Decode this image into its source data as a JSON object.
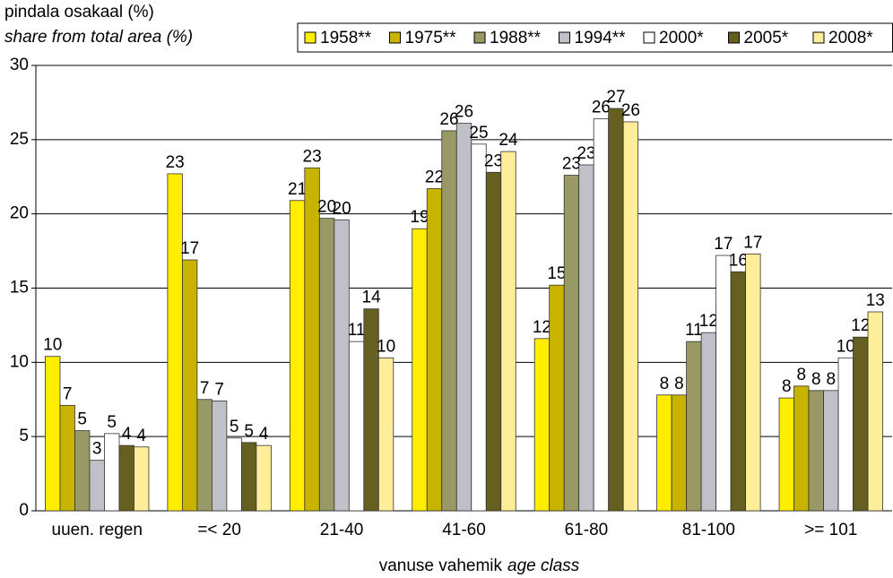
{
  "chart_data": {
    "type": "bar",
    "ylabel": "pindala osakaal (%)",
    "ylabel_en": "share from total area (%)",
    "xlabel": "vanuse vahemik",
    "xlabel_en": "age class",
    "categories": [
      "uuen. regen",
      "=< 20",
      "21-40",
      "41-60",
      "61-80",
      "81-100",
      ">= 101"
    ],
    "ylim": [
      0,
      30
    ],
    "yticks": [
      0,
      5,
      10,
      15,
      20,
      25,
      30
    ],
    "grid": true,
    "legend": "top-right",
    "series": [
      {
        "name": "1958**",
        "color": "#ffee00",
        "values": [
          10.4,
          22.7,
          20.9,
          19.0,
          11.6,
          7.8,
          7.6
        ],
        "value_labels": [
          "10",
          "23",
          "21",
          "19",
          "12",
          "8",
          "8"
        ]
      },
      {
        "name": "1975**",
        "color": "#c8b400",
        "values": [
          7.1,
          16.9,
          23.1,
          21.7,
          15.2,
          7.8,
          8.4
        ],
        "value_labels": [
          "7",
          "17",
          "23",
          "22",
          "15",
          "8",
          "8"
        ]
      },
      {
        "name": "1988**",
        "color": "#999966",
        "values": [
          5.4,
          7.5,
          19.7,
          25.6,
          22.6,
          11.4,
          8.1
        ],
        "value_labels": [
          "5",
          "7",
          "20",
          "26",
          "23",
          "11",
          "8"
        ]
      },
      {
        "name": "1994**",
        "color": "#c0c0c8",
        "values": [
          3.4,
          7.4,
          19.6,
          26.1,
          23.3,
          12.0,
          8.1
        ],
        "value_labels": [
          "3",
          "7",
          "20",
          "26",
          "23",
          "12",
          "8"
        ]
      },
      {
        "name": "2000*",
        "color": "#ffffff",
        "values": [
          5.2,
          4.9,
          11.4,
          24.7,
          26.4,
          17.2,
          10.3
        ],
        "value_labels": [
          "5",
          "5",
          "11",
          "25",
          "26",
          "17",
          "10"
        ]
      },
      {
        "name": "2005*",
        "color": "#666020",
        "values": [
          4.4,
          4.6,
          13.6,
          22.8,
          27.1,
          16.1,
          11.7
        ],
        "value_labels": [
          "4",
          "5",
          "14",
          "23",
          "27",
          "16",
          "12"
        ]
      },
      {
        "name": "2008*",
        "color": "#ffee99",
        "values": [
          4.3,
          4.4,
          10.3,
          24.2,
          26.2,
          17.3,
          13.4
        ],
        "value_labels": [
          "4",
          "4",
          "10",
          "24",
          "26",
          "17",
          "13"
        ]
      }
    ]
  }
}
